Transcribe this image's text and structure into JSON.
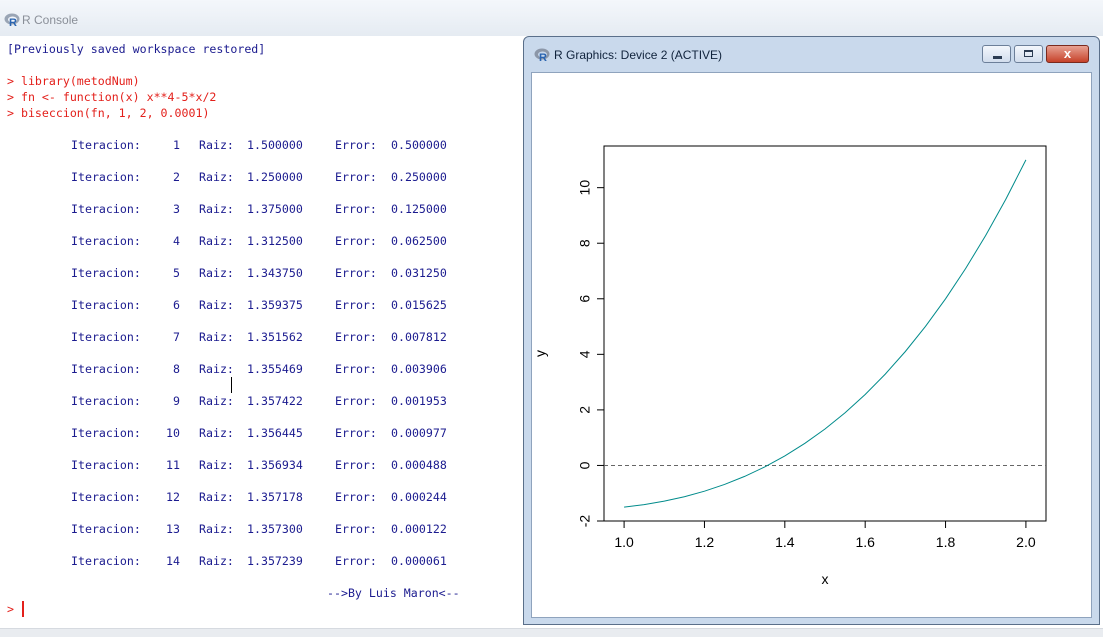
{
  "console": {
    "title": "R Console",
    "header_line": "[Previously saved workspace restored]",
    "commands": [
      "> library(metodNum)",
      "> fn <- function(x) x**4-5*x/2",
      "> biseccion(fn, 1, 2, 0.0001)"
    ],
    "iter_label": "Iteracion:",
    "raiz_label": "Raiz:",
    "error_label": "Error:",
    "iterations": [
      {
        "n": "1",
        "raiz": "1.500000",
        "error": "0.500000"
      },
      {
        "n": "2",
        "raiz": "1.250000",
        "error": "0.250000"
      },
      {
        "n": "3",
        "raiz": "1.375000",
        "error": "0.125000"
      },
      {
        "n": "4",
        "raiz": "1.312500",
        "error": "0.062500"
      },
      {
        "n": "5",
        "raiz": "1.343750",
        "error": "0.031250"
      },
      {
        "n": "6",
        "raiz": "1.359375",
        "error": "0.015625"
      },
      {
        "n": "7",
        "raiz": "1.351562",
        "error": "0.007812"
      },
      {
        "n": "8",
        "raiz": "1.355469",
        "error": "0.003906"
      },
      {
        "n": "9",
        "raiz": "1.357422",
        "error": "0.001953"
      },
      {
        "n": "10",
        "raiz": "1.356445",
        "error": "0.000977"
      },
      {
        "n": "11",
        "raiz": "1.356934",
        "error": "0.000488"
      },
      {
        "n": "12",
        "raiz": "1.357178",
        "error": "0.000244"
      },
      {
        "n": "13",
        "raiz": "1.357300",
        "error": "0.000122"
      },
      {
        "n": "14",
        "raiz": "1.357239",
        "error": "0.000061"
      }
    ],
    "footer": "-->By Luis Maron<--",
    "prompt": ">"
  },
  "graphics_window": {
    "title": "R Graphics: Device 2 (ACTIVE)",
    "close_label": "x"
  },
  "chart_data": {
    "type": "line",
    "function": "x**4-5*x/2",
    "x_range": [
      1.0,
      2.0
    ],
    "xlabel": "x",
    "ylabel": "y",
    "xlim": [
      0.95,
      2.05
    ],
    "ylim": [
      -2,
      11.5
    ],
    "x_ticks": [
      "1.0",
      "1.2",
      "1.4",
      "1.6",
      "1.8",
      "2.0"
    ],
    "y_ticks": [
      "-2",
      "0",
      "2",
      "4",
      "6",
      "8",
      "10"
    ],
    "series": [
      {
        "color": "#008b8b",
        "x": [
          1.0,
          1.05,
          1.1,
          1.15,
          1.2,
          1.25,
          1.3,
          1.35,
          1.4,
          1.45,
          1.5,
          1.55,
          1.6,
          1.65,
          1.7,
          1.75,
          1.8,
          1.85,
          1.9,
          1.95,
          2.0
        ],
        "y": [
          -1.5,
          -1.4095,
          -1.2859,
          -1.1259,
          -0.9264,
          -0.6836,
          -0.3939,
          -0.0539,
          0.3416,
          0.7958,
          1.3125,
          1.896,
          2.5536,
          3.2876,
          4.1021,
          5.0039,
          6.0,
          7.0888,
          8.2821,
          9.5825,
          11.0
        ]
      }
    ],
    "hline": {
      "y": 0,
      "style": "dashed",
      "color": "#666666"
    }
  },
  "colors": {
    "prompt_red": "#e3201b",
    "output_blue": "#1b1b8f"
  }
}
